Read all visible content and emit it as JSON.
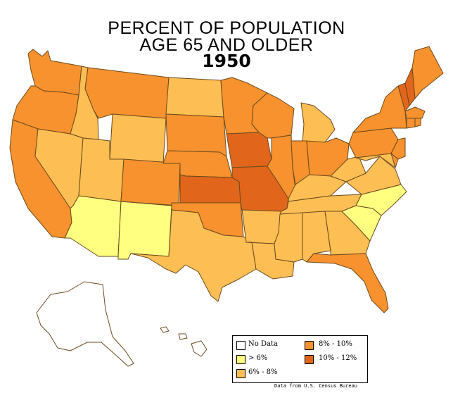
{
  "title": {
    "line1": "PERCENT OF POPULATION",
    "line2": "AGE 65 AND OLDER",
    "year": "1950"
  },
  "legend": {
    "items": [
      {
        "label": "No Data",
        "color": "#ffffff"
      },
      {
        "label": "> 6%",
        "color": "#ffff80"
      },
      {
        "label": "6% - 8%",
        "color": "#fdbe53"
      },
      {
        "label": "8% - 10%",
        "color": "#f7922e"
      },
      {
        "label": "10% - 12%",
        "color": "#e1661c"
      }
    ]
  },
  "source": "Data from U.S. Census Bureau",
  "colors": {
    "border": "#6b4a1d"
  },
  "states": [
    {
      "name": "Washington",
      "class": "8% - 10%"
    },
    {
      "name": "Oregon",
      "class": "8% - 10%"
    },
    {
      "name": "California",
      "class": "8% - 10%"
    },
    {
      "name": "Idaho",
      "class": "6% - 8%"
    },
    {
      "name": "Nevada",
      "class": "6% - 8%"
    },
    {
      "name": "Montana",
      "class": "8% - 10%"
    },
    {
      "name": "Wyoming",
      "class": "6% - 8%"
    },
    {
      "name": "Utah",
      "class": "6% - 8%"
    },
    {
      "name": "Arizona",
      "class": "> 6%"
    },
    {
      "name": "New Mexico",
      "class": "> 6%"
    },
    {
      "name": "Colorado",
      "class": "8% - 10%"
    },
    {
      "name": "North Dakota",
      "class": "6% - 8%"
    },
    {
      "name": "South Dakota",
      "class": "8% - 10%"
    },
    {
      "name": "Nebraska",
      "class": "8% - 10%"
    },
    {
      "name": "Kansas",
      "class": "10% - 12%"
    },
    {
      "name": "Oklahoma",
      "class": "8% - 10%"
    },
    {
      "name": "Texas",
      "class": "6% - 8%"
    },
    {
      "name": "Minnesota",
      "class": "8% - 10%"
    },
    {
      "name": "Iowa",
      "class": "10% - 12%"
    },
    {
      "name": "Missouri",
      "class": "10% - 12%"
    },
    {
      "name": "Arkansas",
      "class": "6% - 8%"
    },
    {
      "name": "Louisiana",
      "class": "6% - 8%"
    },
    {
      "name": "Wisconsin",
      "class": "8% - 10%"
    },
    {
      "name": "Illinois",
      "class": "8% - 10%"
    },
    {
      "name": "Michigan",
      "class": "6% - 8%"
    },
    {
      "name": "Indiana",
      "class": "8% - 10%"
    },
    {
      "name": "Ohio",
      "class": "8% - 10%"
    },
    {
      "name": "Kentucky",
      "class": "6% - 8%"
    },
    {
      "name": "Tennessee",
      "class": "6% - 8%"
    },
    {
      "name": "Mississippi",
      "class": "6% - 8%"
    },
    {
      "name": "Alabama",
      "class": "6% - 8%"
    },
    {
      "name": "Georgia",
      "class": "6% - 8%"
    },
    {
      "name": "Florida",
      "class": "8% - 10%"
    },
    {
      "name": "South Carolina",
      "class": "> 6%"
    },
    {
      "name": "North Carolina",
      "class": "> 6%"
    },
    {
      "name": "Virginia",
      "class": "6% - 8%"
    },
    {
      "name": "West Virginia",
      "class": "6% - 8%"
    },
    {
      "name": "Pennsylvania",
      "class": "8% - 10%"
    },
    {
      "name": "New York",
      "class": "8% - 10%"
    },
    {
      "name": "Vermont",
      "class": "10% - 12%"
    },
    {
      "name": "New Hampshire",
      "class": "10% - 12%"
    },
    {
      "name": "Maine",
      "class": "8% - 10%"
    },
    {
      "name": "Massachusetts",
      "class": "8% - 10%"
    },
    {
      "name": "Connecticut",
      "class": "8% - 10%"
    },
    {
      "name": "Rhode Island",
      "class": "8% - 10%"
    },
    {
      "name": "New Jersey",
      "class": "8% - 10%"
    },
    {
      "name": "Delaware",
      "class": "8% - 10%"
    },
    {
      "name": "Maryland",
      "class": "6% - 8%"
    },
    {
      "name": "Alaska",
      "class": "No Data"
    },
    {
      "name": "Hawaii",
      "class": "No Data"
    }
  ]
}
